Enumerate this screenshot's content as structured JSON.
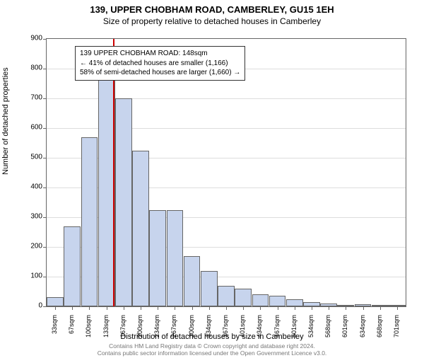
{
  "titles": {
    "main": "139, UPPER CHOBHAM ROAD, CAMBERLEY, GU15 1EH",
    "sub": "Size of property relative to detached houses in Camberley"
  },
  "chart": {
    "type": "histogram",
    "background_color": "#ffffff",
    "grid_color": "#dddddd",
    "bar_fill": "#c7d4ed",
    "bar_border": "#666666",
    "axis_color": "#666666",
    "vline_color": "#cc0000",
    "vline_x_index": 3.4,
    "ylim": [
      0,
      900
    ],
    "ytick_step": 100,
    "yticks": [
      0,
      100,
      200,
      300,
      400,
      500,
      600,
      700,
      800,
      900
    ],
    "categories": [
      "33sqm",
      "67sqm",
      "100sqm",
      "133sqm",
      "167sqm",
      "200sqm",
      "234sqm",
      "267sqm",
      "300sqm",
      "334sqm",
      "367sqm",
      "401sqm",
      "434sqm",
      "467sqm",
      "501sqm",
      "534sqm",
      "568sqm",
      "601sqm",
      "634sqm",
      "668sqm",
      "701sqm"
    ],
    "values": [
      30,
      270,
      570,
      780,
      700,
      525,
      325,
      325,
      170,
      120,
      70,
      60,
      40,
      35,
      25,
      15,
      10,
      5,
      8,
      5,
      5
    ],
    "ylabel": "Number of detached properties",
    "xlabel": "Distribution of detached houses by size in Camberley",
    "xtick_fontsize": 9,
    "ytick_fontsize": 10,
    "label_fontsize": 11,
    "bar_width_ratio": 0.98
  },
  "annotation": {
    "line1": "139 UPPER CHOBHAM ROAD: 148sqm",
    "line2": "← 41% of detached houses are smaller (1,166)",
    "line3": "58% of semi-detached houses are larger (1,660) →"
  },
  "footer": {
    "line1": "Contains HM Land Registry data © Crown copyright and database right 2024.",
    "line2": "Contains public sector information licensed under the Open Government Licence v3.0."
  }
}
